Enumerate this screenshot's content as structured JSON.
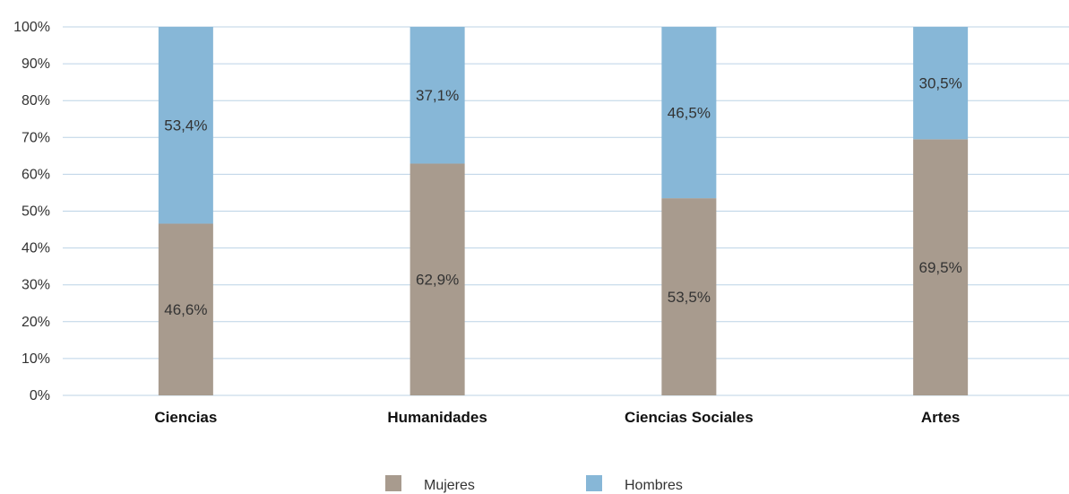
{
  "chart_data": {
    "type": "bar",
    "stacked": true,
    "categories": [
      "Ciencias",
      "Humanidades",
      "Ciencias Sociales",
      "Artes"
    ],
    "series": [
      {
        "name": "Mujeres",
        "color": "#a89b8e",
        "values": [
          46.6,
          62.9,
          53.5,
          69.5
        ],
        "labels": [
          "46,6%",
          "62,9%",
          "53,5%",
          "69,5%"
        ]
      },
      {
        "name": "Hombres",
        "color": "#87b7d7",
        "values": [
          53.4,
          37.1,
          46.5,
          30.5
        ],
        "labels": [
          "53,4%",
          "37,1%",
          "46,5%",
          "30,5%"
        ]
      }
    ],
    "ylim": [
      0,
      100
    ],
    "yticks": [
      0,
      10,
      20,
      30,
      40,
      50,
      60,
      70,
      80,
      90,
      100
    ],
    "ytick_labels": [
      "0%",
      "10%",
      "20%",
      "30%",
      "40%",
      "50%",
      "60%",
      "70%",
      "80%",
      "90%",
      "100%"
    ],
    "grid": true,
    "legend_position": "bottom"
  }
}
